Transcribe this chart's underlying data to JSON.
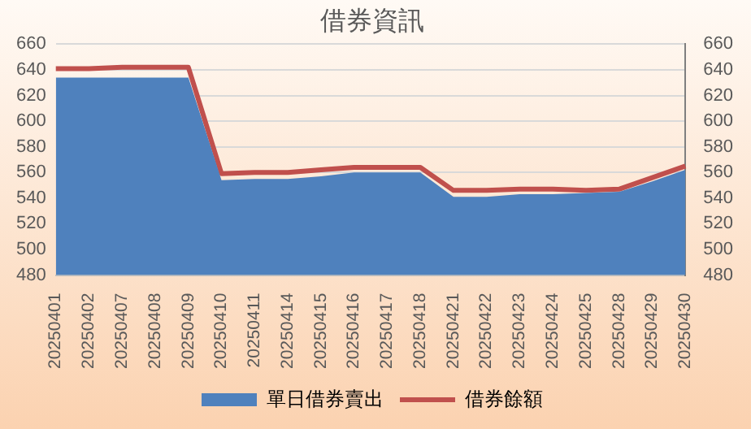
{
  "chart_data": {
    "type": "area",
    "title": "借券資訊",
    "categories": [
      "20250401",
      "20250402",
      "20250407",
      "20250408",
      "20250409",
      "20250410",
      "20250411",
      "20250414",
      "20250415",
      "20250416",
      "20250417",
      "20250418",
      "20250421",
      "20250422",
      "20250423",
      "20250424",
      "20250425",
      "20250428",
      "20250429",
      "20250430"
    ],
    "series": [
      {
        "name": "單日借券賣出",
        "color": "#4f81bd",
        "values": [
          634,
          634,
          634,
          634,
          634,
          554,
          555,
          555,
          557,
          560,
          560,
          560,
          541,
          541,
          543,
          543,
          544,
          545,
          553,
          562
        ]
      },
      {
        "name": "借券餘額",
        "type": "line",
        "axis": "y2",
        "color": "#c0504d",
        "values": [
          641,
          641,
          642,
          642,
          642,
          559,
          560,
          560,
          562,
          564,
          564,
          564,
          546,
          546,
          547,
          547,
          546,
          547,
          556,
          565
        ]
      }
    ],
    "ylim": [
      480,
      660
    ],
    "yticks": [
      480,
      500,
      520,
      540,
      560,
      580,
      600,
      620,
      640,
      660
    ],
    "y2lim": [
      480,
      660
    ],
    "y2ticks": [
      480,
      500,
      520,
      540,
      560,
      580,
      600,
      620,
      640,
      660
    ],
    "grid": "y",
    "legend": "bottom",
    "marker": "none"
  }
}
